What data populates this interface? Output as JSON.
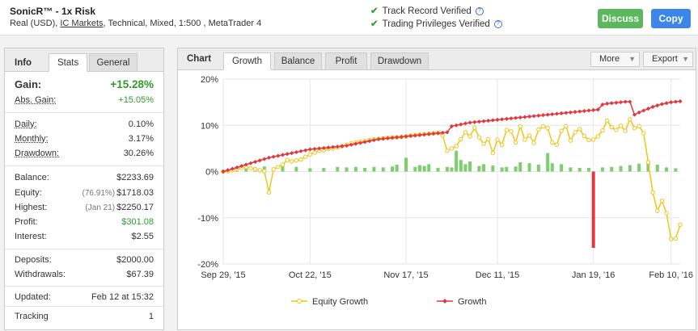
{
  "header": {
    "system_name": "SonicR™ - 1x Risk",
    "desc_prefix": "Real (USD), ",
    "broker": "IC Markets",
    "desc_suffix": ", Technical, Mixed, 1:500 , MetaTrader 4",
    "verifications": [
      "Track Record Verified",
      "Trading Privileges Verified"
    ],
    "discuss_label": "Discuss",
    "copy_label": "Copy"
  },
  "left_tabs": {
    "title": "Info",
    "active": "Stats",
    "other": "General"
  },
  "stats": {
    "gain": {
      "label": "Gain:",
      "value": "+15.28%"
    },
    "abs_gain": {
      "label": "Abs. Gain:",
      "value": "+15.05%"
    },
    "daily": {
      "label": "Daily:",
      "value": "0.10%"
    },
    "monthly": {
      "label": "Monthly:",
      "value": "3.17%"
    },
    "drawdown": {
      "label": "Drawdown:",
      "value": "30.26%"
    },
    "balance": {
      "label": "Balance:",
      "value": "$2233.69"
    },
    "equity": {
      "label": "Equity:",
      "note": "(76.91%)",
      "value": "$1718.03"
    },
    "highest": {
      "label": "Highest:",
      "note": "(Jan 21)",
      "value": "$2250.17"
    },
    "profit": {
      "label": "Profit:",
      "value": "$301.08"
    },
    "interest": {
      "label": "Interest:",
      "value": "$2.55"
    },
    "deposits": {
      "label": "Deposits:",
      "value": "$2000.00"
    },
    "withdrawals": {
      "label": "Withdrawals:",
      "value": "$67.39"
    },
    "updated": {
      "label": "Updated:",
      "value": "Feb 12 at 15:32"
    },
    "tracking": {
      "label": "Tracking",
      "value": "1"
    }
  },
  "right_tabs": {
    "title": "Chart",
    "tabs": [
      "Growth",
      "Balance",
      "Profit",
      "Drawdown"
    ],
    "active": "Growth",
    "more_label": "More",
    "export_label": "Export"
  },
  "colors": {
    "equity": "#f0c419",
    "growth": "#e0393e",
    "bars_pos": "#7bcf6c",
    "bars_neg": "#e0393e",
    "accent_green": "#5cb85c",
    "accent_blue": "#3b86e8"
  },
  "chart_data": {
    "type": "line",
    "ylim": [
      -20,
      20
    ],
    "yticks": [
      "20%",
      "10%",
      "0%",
      "-10%",
      "-20%"
    ],
    "xticks": [
      "Sep 29, '15",
      "Oct 22, '15",
      "Nov 17, '15",
      "Dec 11, '15",
      "Jan 19, '16",
      "Feb 10, '16"
    ],
    "xtick_idx": [
      0,
      19,
      40,
      60,
      81,
      98
    ],
    "series": [
      {
        "name": "Equity Growth",
        "values": [
          0,
          0.1,
          0.3,
          0.5,
          0.8,
          1,
          0.7,
          0.5,
          0.3,
          0.1,
          -4.5,
          0.5,
          1,
          1.5,
          2.5,
          2.2,
          2.4,
          2.6,
          3.2,
          3.7,
          4.1,
          4.5,
          4.6,
          4.9,
          5,
          5.2,
          5.5,
          5.8,
          6.1,
          6.3,
          6.5,
          6.6,
          6.8,
          7,
          7.1,
          7.2,
          7.3,
          7.4,
          7.4,
          7.5,
          7.6,
          7.8,
          7.9,
          8.0,
          8.1,
          8.2,
          8.3,
          8.4,
          7.8,
          4.5,
          5,
          5.5,
          7,
          8.5,
          7.6,
          9.5,
          7.4,
          6,
          7,
          4,
          6.9,
          5.8,
          9,
          8.7,
          6.3,
          9.8,
          6.9,
          7.8,
          6.2,
          9.1,
          9.8,
          9.4,
          6.3,
          5.8,
          8.8,
          9.8,
          6.7,
          8.5,
          9.2,
          7.7,
          6.8,
          6.9,
          7.6,
          8.9,
          11,
          9.6,
          9.0,
          9.9,
          8.8,
          11.3,
          9.4,
          9.8,
          8.3,
          2,
          -4.5,
          -8.5,
          -6.3,
          -9,
          -14.6,
          -14.5,
          -11.5
        ],
        "yaxis_unit": "%"
      },
      {
        "name": "Growth",
        "values": [
          0,
          0.3,
          0.6,
          0.9,
          1.2,
          1.5,
          1.8,
          2.1,
          2.4,
          2.7,
          3,
          3.2,
          3.4,
          3.6,
          3.8,
          4.0,
          4.2,
          4.4,
          4.6,
          4.8,
          4.9,
          5.0,
          5.1,
          5.2,
          5.3,
          5.4,
          5.5,
          5.6,
          5.8,
          6.0,
          6.2,
          6.4,
          6.6,
          6.8,
          7.0,
          7.1,
          7.2,
          7.3,
          7.4,
          7.5,
          7.6,
          7.7,
          7.8,
          7.9,
          8.0,
          8.1,
          8.2,
          8.3,
          8.4,
          8.5,
          9.8,
          10,
          10.2,
          10.4,
          10.6,
          10.7,
          10.8,
          10.9,
          11.0,
          11.1,
          11.2,
          11.3,
          11.4,
          11.5,
          11.6,
          11.7,
          11.8,
          11.9,
          12.0,
          12.1,
          12.2,
          12.3,
          12.4,
          12.5,
          12.6,
          12.7,
          12.8,
          12.9,
          13.0,
          13.1,
          13.2,
          13.3,
          13.4,
          14.5,
          14.7,
          14.8,
          14.9,
          15.0,
          15.1,
          15.1,
          12.3,
          12.8,
          13.2,
          13.6,
          14.0,
          14.3,
          14.6,
          14.8,
          15.0,
          15.1,
          15.2
        ]
      }
    ],
    "bars": [
      {
        "i": 3,
        "v": 1.0
      },
      {
        "i": 5,
        "v": 1.2
      },
      {
        "i": 7,
        "v": 0.9
      },
      {
        "i": 9,
        "v": 1.1
      },
      {
        "i": 13,
        "v": 1.2
      },
      {
        "i": 16,
        "v": 1.0
      },
      {
        "i": 19,
        "v": 0.7
      },
      {
        "i": 22,
        "v": 0.8
      },
      {
        "i": 25,
        "v": 1.0
      },
      {
        "i": 27,
        "v": 0.9
      },
      {
        "i": 29,
        "v": 1.0
      },
      {
        "i": 31,
        "v": 0.8
      },
      {
        "i": 33,
        "v": 1.0
      },
      {
        "i": 35,
        "v": 0.9
      },
      {
        "i": 37,
        "v": 1.1
      },
      {
        "i": 38,
        "v": 1.5
      },
      {
        "i": 40,
        "v": 3.0
      },
      {
        "i": 42,
        "v": 1.0
      },
      {
        "i": 43,
        "v": 1.4
      },
      {
        "i": 44,
        "v": 1.2
      },
      {
        "i": 45,
        "v": 1.6
      },
      {
        "i": 47,
        "v": 0.8
      },
      {
        "i": 49,
        "v": 1.0
      },
      {
        "i": 50,
        "v": 0.9
      },
      {
        "i": 51,
        "v": 4.5
      },
      {
        "i": 52,
        "v": 2.5
      },
      {
        "i": 53,
        "v": 1.6
      },
      {
        "i": 54,
        "v": 2.2
      },
      {
        "i": 56,
        "v": 1.2
      },
      {
        "i": 57,
        "v": 1.6
      },
      {
        "i": 59,
        "v": 1.3
      },
      {
        "i": 61,
        "v": 0.9
      },
      {
        "i": 62,
        "v": 1.0
      },
      {
        "i": 64,
        "v": 1.1
      },
      {
        "i": 65,
        "v": 2.0
      },
      {
        "i": 67,
        "v": 1.8
      },
      {
        "i": 69,
        "v": 1.5
      },
      {
        "i": 71,
        "v": 4.0
      },
      {
        "i": 72,
        "v": 1.8
      },
      {
        "i": 74,
        "v": 1.6
      },
      {
        "i": 76,
        "v": 0.9
      },
      {
        "i": 78,
        "v": 0.8
      },
      {
        "i": 80,
        "v": 0.8
      },
      {
        "i": 81,
        "v": -16.5
      },
      {
        "i": 83,
        "v": 0.9
      },
      {
        "i": 85,
        "v": 1.0
      },
      {
        "i": 87,
        "v": 1.2
      },
      {
        "i": 89,
        "v": 1.4
      },
      {
        "i": 91,
        "v": 1.7
      },
      {
        "i": 93,
        "v": 1.9
      },
      {
        "i": 95,
        "v": 1.5
      },
      {
        "i": 97,
        "v": 0.9
      },
      {
        "i": 99,
        "v": 0.7
      }
    ],
    "legend_position": "bottom"
  }
}
